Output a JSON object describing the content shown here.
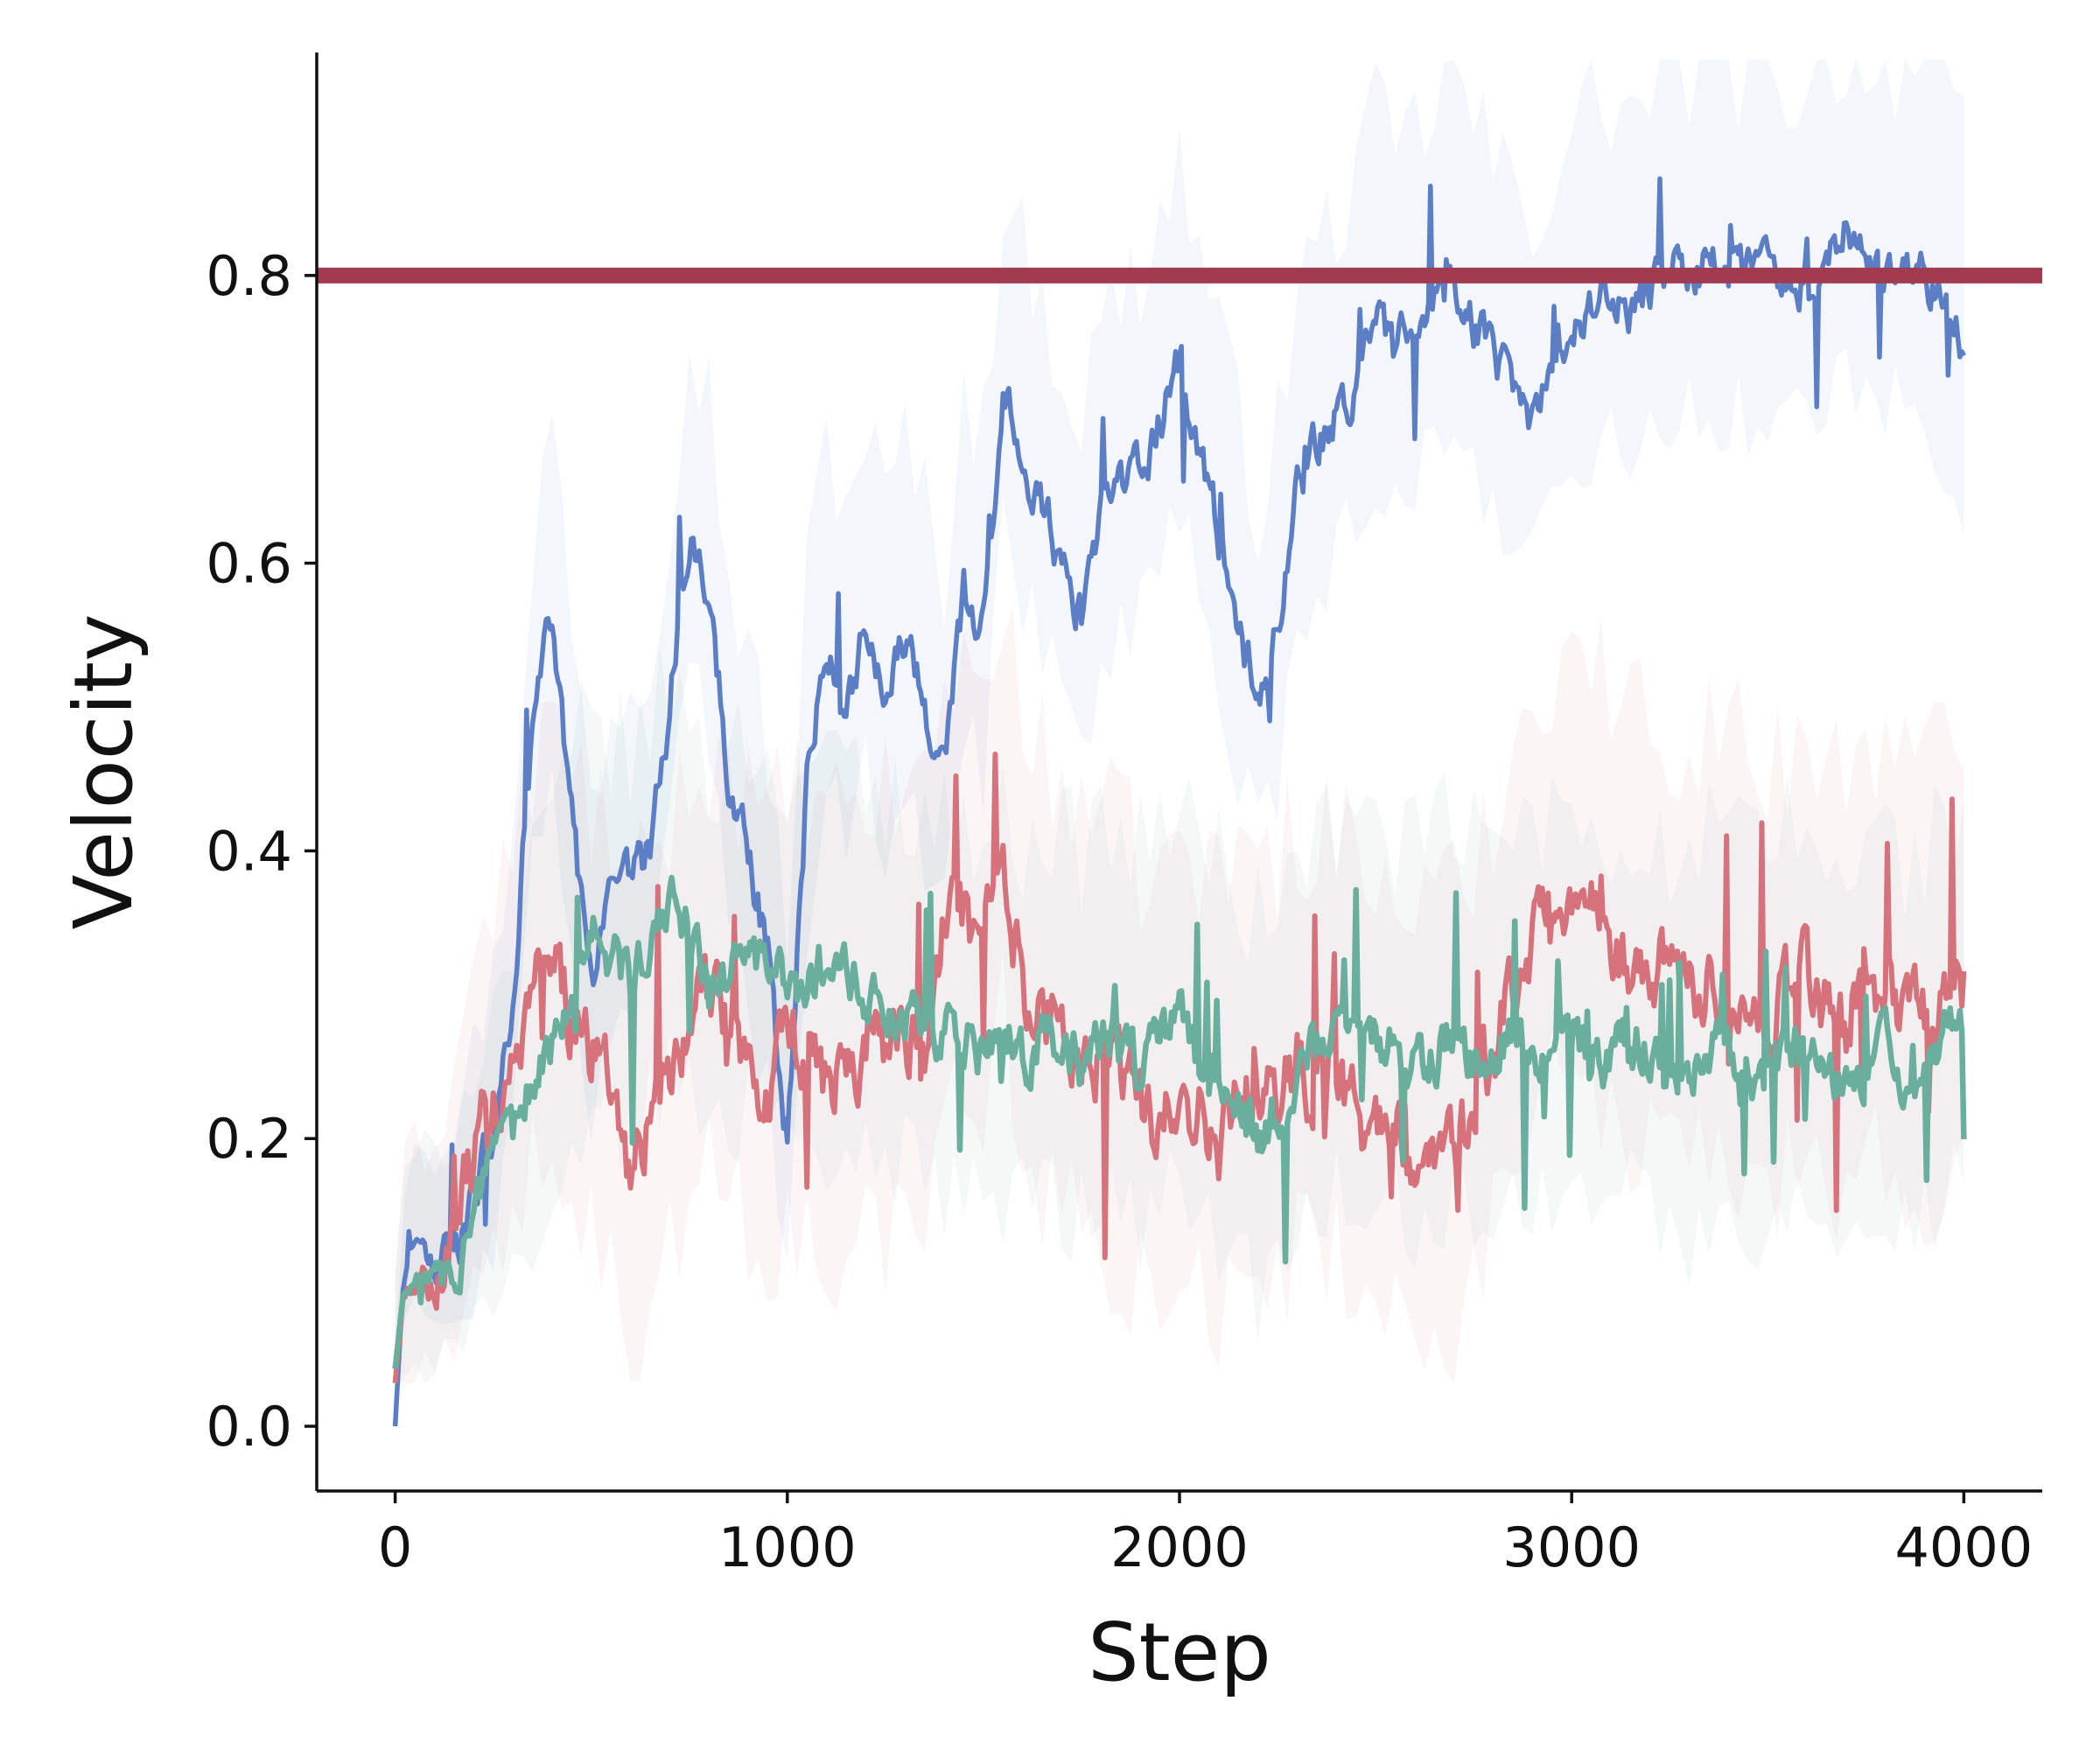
{
  "chart_data": {
    "type": "line",
    "title": "",
    "xlabel": "Step",
    "ylabel": "Velocity",
    "xlim": [
      -200,
      4200
    ],
    "ylim": [
      -0.045,
      0.955
    ],
    "xticks": [
      0,
      1000,
      2000,
      3000,
      4000
    ],
    "xtick_labels": [
      "0",
      "1000",
      "2000",
      "3000",
      "4000"
    ],
    "yticks": [
      0.0,
      0.2,
      0.4,
      0.6,
      0.8
    ],
    "ytick_labels": [
      "0.0",
      "0.2",
      "0.4",
      "0.6",
      "0.8"
    ],
    "grid": false,
    "legend": null,
    "target_line": {
      "y": 0.8,
      "color": "#a23b4f"
    },
    "series": [
      {
        "color": "#5b7ec4",
        "x": [
          0,
          20,
          50,
          100,
          150,
          200,
          250,
          300,
          350,
          400,
          450,
          500,
          550,
          600,
          650,
          700,
          750,
          800,
          850,
          900,
          950,
          1000,
          1050,
          1100,
          1150,
          1200,
          1250,
          1300,
          1350,
          1400,
          1450,
          1500,
          1550,
          1600,
          1650,
          1700,
          1750,
          1800,
          1850,
          1900,
          1950,
          2000,
          2050,
          2100,
          2150,
          2200,
          2250,
          2300,
          2350,
          2400,
          2450,
          2500,
          2550,
          2600,
          2650,
          2700,
          2750,
          2800,
          2850,
          2900,
          2950,
          3000,
          3050,
          3100,
          3150,
          3200,
          3250,
          3300,
          3350,
          3400,
          3450,
          3500,
          3550,
          3600,
          3650,
          3700,
          3750,
          3800,
          3850,
          3900,
          3950,
          4000
        ],
        "y": [
          0.0,
          0.1,
          0.13,
          0.11,
          0.12,
          0.16,
          0.2,
          0.3,
          0.48,
          0.56,
          0.42,
          0.3,
          0.36,
          0.38,
          0.4,
          0.5,
          0.62,
          0.58,
          0.45,
          0.4,
          0.33,
          0.2,
          0.45,
          0.55,
          0.5,
          0.56,
          0.5,
          0.55,
          0.5,
          0.45,
          0.58,
          0.55,
          0.72,
          0.68,
          0.64,
          0.6,
          0.56,
          0.63,
          0.65,
          0.66,
          0.7,
          0.74,
          0.68,
          0.62,
          0.56,
          0.5,
          0.55,
          0.65,
          0.68,
          0.7,
          0.73,
          0.77,
          0.75,
          0.76,
          0.78,
          0.8,
          0.77,
          0.74,
          0.72,
          0.7,
          0.73,
          0.76,
          0.78,
          0.78,
          0.77,
          0.79,
          0.81,
          0.8,
          0.81,
          0.8,
          0.8,
          0.81,
          0.79,
          0.8,
          0.81,
          0.82,
          0.81,
          0.8,
          0.81,
          0.8,
          0.78,
          0.75
        ]
      },
      {
        "color": "#d6727c",
        "x": [
          0,
          20,
          50,
          100,
          150,
          200,
          250,
          300,
          350,
          400,
          450,
          500,
          550,
          600,
          650,
          700,
          750,
          800,
          850,
          900,
          950,
          1000,
          1050,
          1100,
          1150,
          1200,
          1250,
          1300,
          1350,
          1400,
          1450,
          1500,
          1550,
          1600,
          1650,
          1700,
          1750,
          1800,
          1850,
          1900,
          1950,
          2000,
          2050,
          2100,
          2150,
          2200,
          2250,
          2300,
          2350,
          2400,
          2450,
          2500,
          2550,
          2600,
          2650,
          2700,
          2750,
          2800,
          2850,
          2900,
          2950,
          3000,
          3050,
          3100,
          3150,
          3200,
          3250,
          3300,
          3350,
          3400,
          3450,
          3500,
          3550,
          3600,
          3650,
          3700,
          3750,
          3800,
          3850,
          3900,
          3950,
          4000
        ],
        "y": [
          0.03,
          0.09,
          0.1,
          0.1,
          0.13,
          0.2,
          0.22,
          0.25,
          0.3,
          0.32,
          0.28,
          0.26,
          0.24,
          0.18,
          0.22,
          0.25,
          0.27,
          0.3,
          0.29,
          0.26,
          0.24,
          0.27,
          0.26,
          0.24,
          0.25,
          0.27,
          0.26,
          0.28,
          0.27,
          0.35,
          0.36,
          0.33,
          0.42,
          0.3,
          0.29,
          0.28,
          0.27,
          0.25,
          0.24,
          0.22,
          0.21,
          0.23,
          0.22,
          0.2,
          0.24,
          0.23,
          0.22,
          0.25,
          0.24,
          0.25,
          0.22,
          0.2,
          0.21,
          0.18,
          0.2,
          0.19,
          0.22,
          0.26,
          0.3,
          0.33,
          0.36,
          0.38,
          0.36,
          0.34,
          0.32,
          0.33,
          0.31,
          0.3,
          0.32,
          0.31,
          0.3,
          0.28,
          0.3,
          0.31,
          0.29,
          0.28,
          0.32,
          0.3,
          0.29,
          0.28,
          0.3,
          0.31
        ]
      },
      {
        "color": "#6aaf9d",
        "x": [
          0,
          20,
          50,
          100,
          150,
          200,
          250,
          300,
          350,
          400,
          450,
          500,
          550,
          600,
          650,
          700,
          750,
          800,
          850,
          900,
          950,
          1000,
          1050,
          1100,
          1150,
          1200,
          1250,
          1300,
          1350,
          1400,
          1450,
          1500,
          1550,
          1600,
          1650,
          1700,
          1750,
          1800,
          1850,
          1900,
          1950,
          2000,
          2050,
          2100,
          2150,
          2200,
          2250,
          2300,
          2350,
          2400,
          2450,
          2500,
          2550,
          2600,
          2650,
          2700,
          2750,
          2800,
          2850,
          2900,
          2950,
          3000,
          3050,
          3100,
          3150,
          3200,
          3250,
          3300,
          3350,
          3400,
          3450,
          3500,
          3550,
          3600,
          3650,
          3700,
          3750,
          3800,
          3850,
          3900,
          3950,
          4000
        ],
        "y": [
          0.04,
          0.09,
          0.1,
          0.1,
          0.11,
          0.14,
          0.17,
          0.2,
          0.24,
          0.27,
          0.31,
          0.34,
          0.33,
          0.31,
          0.34,
          0.36,
          0.35,
          0.3,
          0.31,
          0.33,
          0.32,
          0.3,
          0.31,
          0.3,
          0.31,
          0.3,
          0.28,
          0.29,
          0.28,
          0.27,
          0.27,
          0.26,
          0.27,
          0.26,
          0.27,
          0.26,
          0.25,
          0.27,
          0.26,
          0.25,
          0.27,
          0.28,
          0.26,
          0.24,
          0.22,
          0.2,
          0.22,
          0.24,
          0.26,
          0.27,
          0.26,
          0.27,
          0.26,
          0.25,
          0.26,
          0.27,
          0.26,
          0.25,
          0.27,
          0.26,
          0.27,
          0.28,
          0.26,
          0.25,
          0.27,
          0.26,
          0.24,
          0.23,
          0.26,
          0.27,
          0.25,
          0.24,
          0.27,
          0.26,
          0.24,
          0.23,
          0.25,
          0.26,
          0.24,
          0.25,
          0.27,
          0.28
        ]
      }
    ]
  }
}
